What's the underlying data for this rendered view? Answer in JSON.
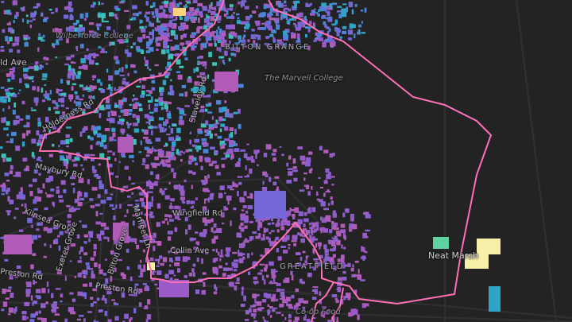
{
  "map": {
    "boundary_color": "#ff6fb5",
    "place_labels": {
      "wilberforce": "Wilberforce College",
      "marvell": "The Marvell College",
      "bilton_grange": "BILTON GRANGE",
      "greatfield": "GREATFIELD",
      "neat_marsh": "Neat Marsh",
      "coop": "Co-op Food"
    },
    "road_labels": {
      "ld_ave": "ld Ave",
      "holderness": "Holderness Rd",
      "staveley": "Staveley Rd",
      "maybury": "Maybury Rd",
      "kilnsea": "Kilnsea Grove",
      "exeter": "Exeter Grove",
      "bilton_grove": "Bilton Grove",
      "marfleet": "Marfleet Ln",
      "wingfield": "Wingfield Rd",
      "collin": "Collin Ave",
      "preston": "Preston Rd"
    },
    "building_palette": [
      "#9a5bc8",
      "#8a5fd0",
      "#b05cb8",
      "#7468d8",
      "#4a86d6",
      "#2fa3c8",
      "#3cc0b8",
      "#f7f0a8",
      "#ffd27a",
      "#5fd3a0"
    ]
  }
}
